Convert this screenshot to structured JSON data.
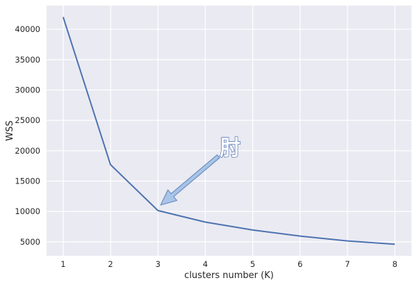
{
  "chart_data": {
    "type": "line",
    "title": "",
    "xlabel": "clusters number (K)",
    "ylabel": "WSS",
    "x": [
      1,
      2,
      3,
      4,
      5,
      6,
      7,
      8
    ],
    "series": [
      {
        "values": [
          42000,
          17700,
          10150,
          8250,
          6950,
          5950,
          5150,
          4600
        ]
      }
    ],
    "xlim": [
      0.65,
      8.35
    ],
    "ylim": [
      2700,
      43900
    ],
    "xticks": [
      "1",
      "2",
      "3",
      "4",
      "5",
      "6",
      "7",
      "8"
    ],
    "yticks": [
      "5000",
      "10000",
      "15000",
      "20000",
      "25000",
      "30000",
      "35000",
      "40000"
    ],
    "grid": true,
    "colors": {
      "line": "#4c72b0",
      "background": "#eaeaf2",
      "grid": "#ffffff",
      "arrow_fill": "#a8c4e8",
      "arrow_edge": "#6a8fc0",
      "annotation_text": "#ffffff",
      "annotation_outline": "#4c72b0"
    },
    "annotation": {
      "text": "肘",
      "point": [
        3,
        10150
      ]
    }
  }
}
